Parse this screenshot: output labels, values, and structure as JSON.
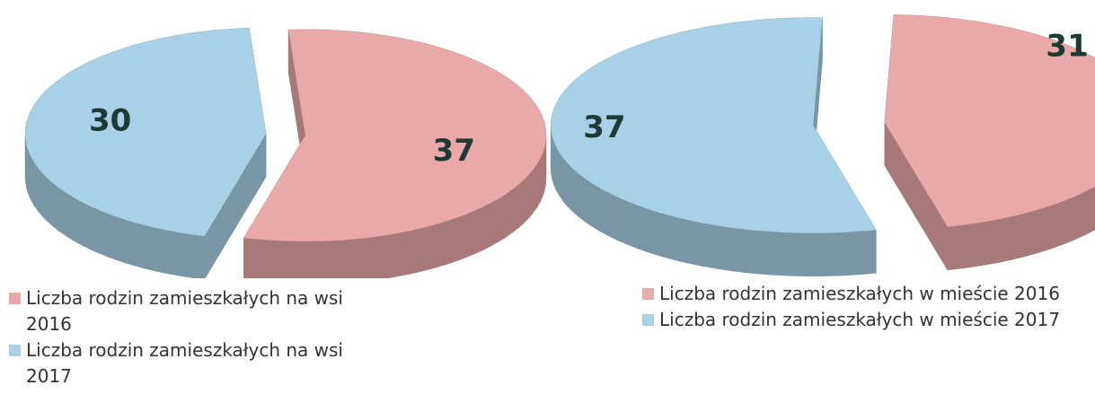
{
  "chart_data": [
    {
      "type": "pie",
      "series": [
        {
          "name": "Liczba rodzin zamieszkałych na wsi 2016",
          "color": "#e8a9a8",
          "values": [
            37
          ]
        },
        {
          "name": "Liczba rodzin zamieszkałych na wsi 2017",
          "color": "#a8d0e6",
          "values": [
            30
          ]
        }
      ]
    },
    {
      "type": "pie",
      "series": [
        {
          "name": "Liczba rodzin zamieszkałych w mieście 2016",
          "color": "#e8a9a8",
          "values": [
            31
          ]
        },
        {
          "name": "Liczba rodzin zamieszkałych w mieście 2017",
          "color": "#a8d0e6",
          "values": [
            37
          ]
        }
      ]
    }
  ]
}
